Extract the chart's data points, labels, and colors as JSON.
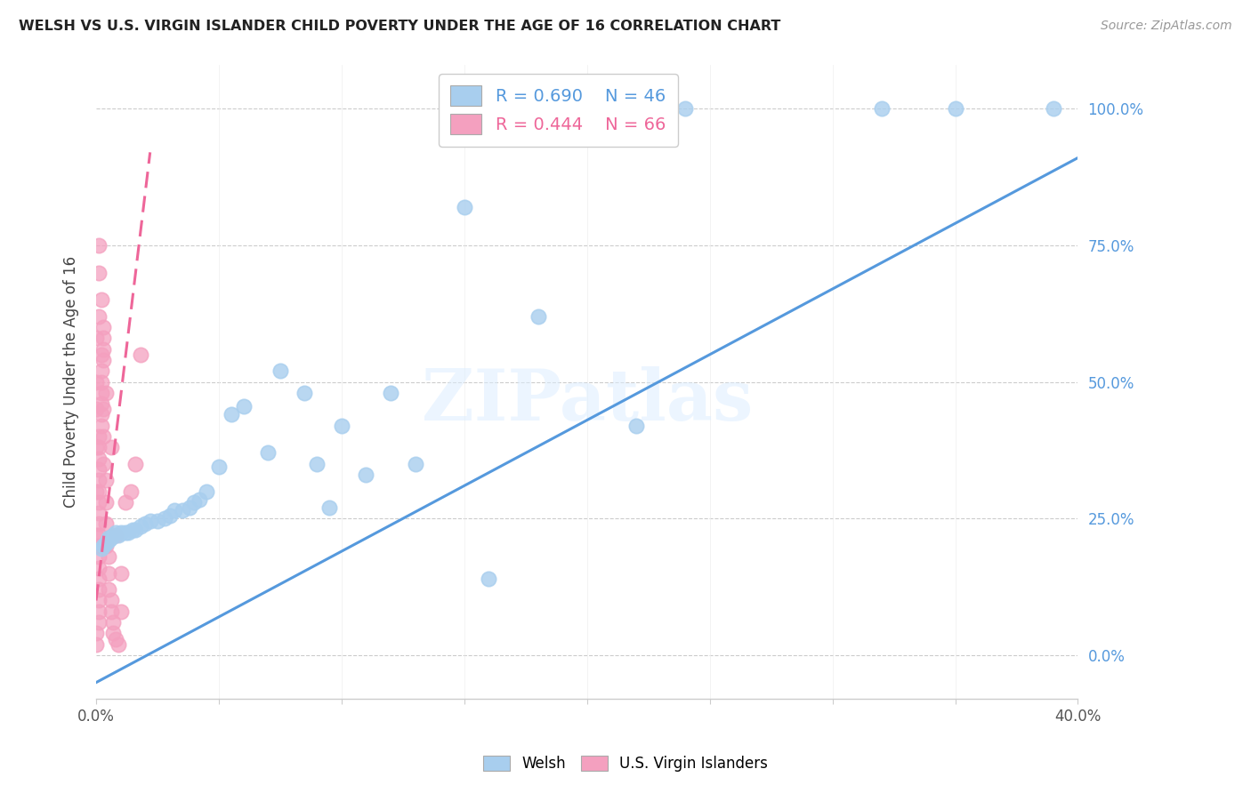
{
  "title": "WELSH VS U.S. VIRGIN ISLANDER CHILD POVERTY UNDER THE AGE OF 16 CORRELATION CHART",
  "source": "Source: ZipAtlas.com",
  "ylabel": "Child Poverty Under the Age of 16",
  "x_min": 0.0,
  "x_max": 0.4,
  "y_min": -0.08,
  "y_max": 1.08,
  "x_ticks": [
    0.0,
    0.05,
    0.1,
    0.15,
    0.2,
    0.25,
    0.3,
    0.35,
    0.4
  ],
  "x_tick_labels": [
    "0.0%",
    "",
    "",
    "",
    "",
    "",
    "",
    "",
    "40.0%"
  ],
  "y_ticks": [
    0.0,
    0.25,
    0.5,
    0.75,
    1.0
  ],
  "y_tick_labels_right": [
    "0.0%",
    "25.0%",
    "50.0%",
    "75.0%",
    "100.0%"
  ],
  "legend_welsh_R": "R = 0.690",
  "legend_welsh_N": "N = 46",
  "legend_vi_R": "R = 0.444",
  "legend_vi_N": "N = 66",
  "welsh_color": "#A8CEEE",
  "vi_color": "#F4A0BF",
  "welsh_line_color": "#5599DD",
  "vi_line_color": "#EE6699",
  "watermark": "ZIPatlas",
  "welsh_line": [
    [
      0.0,
      -0.05
    ],
    [
      0.4,
      0.91
    ]
  ],
  "vi_line": [
    [
      0.0,
      0.1
    ],
    [
      0.022,
      0.92
    ]
  ],
  "welsh_scatter": [
    [
      0.002,
      0.195
    ],
    [
      0.003,
      0.2
    ],
    [
      0.004,
      0.205
    ],
    [
      0.005,
      0.21
    ],
    [
      0.005,
      0.215
    ],
    [
      0.006,
      0.215
    ],
    [
      0.007,
      0.22
    ],
    [
      0.008,
      0.225
    ],
    [
      0.009,
      0.22
    ],
    [
      0.01,
      0.225
    ],
    [
      0.012,
      0.225
    ],
    [
      0.013,
      0.225
    ],
    [
      0.015,
      0.23
    ],
    [
      0.016,
      0.23
    ],
    [
      0.018,
      0.235
    ],
    [
      0.02,
      0.24
    ],
    [
      0.022,
      0.245
    ],
    [
      0.025,
      0.245
    ],
    [
      0.028,
      0.25
    ],
    [
      0.03,
      0.255
    ],
    [
      0.032,
      0.265
    ],
    [
      0.035,
      0.265
    ],
    [
      0.038,
      0.27
    ],
    [
      0.04,
      0.28
    ],
    [
      0.042,
      0.285
    ],
    [
      0.045,
      0.3
    ],
    [
      0.05,
      0.345
    ],
    [
      0.055,
      0.44
    ],
    [
      0.06,
      0.455
    ],
    [
      0.07,
      0.37
    ],
    [
      0.075,
      0.52
    ],
    [
      0.085,
      0.48
    ],
    [
      0.09,
      0.35
    ],
    [
      0.095,
      0.27
    ],
    [
      0.1,
      0.42
    ],
    [
      0.11,
      0.33
    ],
    [
      0.12,
      0.48
    ],
    [
      0.13,
      0.35
    ],
    [
      0.15,
      0.82
    ],
    [
      0.16,
      0.14
    ],
    [
      0.18,
      0.62
    ],
    [
      0.22,
      0.42
    ],
    [
      0.24,
      1.0
    ],
    [
      0.32,
      1.0
    ],
    [
      0.35,
      1.0
    ],
    [
      0.39,
      1.0
    ]
  ],
  "vi_scatter": [
    [
      0.0,
      0.02
    ],
    [
      0.0,
      0.04
    ],
    [
      0.001,
      0.06
    ],
    [
      0.001,
      0.08
    ],
    [
      0.001,
      0.1
    ],
    [
      0.001,
      0.12
    ],
    [
      0.001,
      0.14
    ],
    [
      0.001,
      0.16
    ],
    [
      0.001,
      0.18
    ],
    [
      0.001,
      0.2
    ],
    [
      0.001,
      0.22
    ],
    [
      0.001,
      0.24
    ],
    [
      0.001,
      0.26
    ],
    [
      0.001,
      0.28
    ],
    [
      0.001,
      0.3
    ],
    [
      0.001,
      0.32
    ],
    [
      0.001,
      0.34
    ],
    [
      0.001,
      0.36
    ],
    [
      0.001,
      0.38
    ],
    [
      0.001,
      0.4
    ],
    [
      0.002,
      0.42
    ],
    [
      0.002,
      0.44
    ],
    [
      0.002,
      0.46
    ],
    [
      0.002,
      0.48
    ],
    [
      0.002,
      0.5
    ],
    [
      0.002,
      0.52
    ],
    [
      0.003,
      0.54
    ],
    [
      0.003,
      0.56
    ],
    [
      0.003,
      0.58
    ],
    [
      0.003,
      0.4
    ],
    [
      0.003,
      0.35
    ],
    [
      0.004,
      0.32
    ],
    [
      0.004,
      0.28
    ],
    [
      0.004,
      0.24
    ],
    [
      0.004,
      0.2
    ],
    [
      0.005,
      0.18
    ],
    [
      0.005,
      0.15
    ],
    [
      0.005,
      0.12
    ],
    [
      0.006,
      0.1
    ],
    [
      0.006,
      0.08
    ],
    [
      0.007,
      0.06
    ],
    [
      0.007,
      0.04
    ],
    [
      0.008,
      0.03
    ],
    [
      0.009,
      0.02
    ],
    [
      0.01,
      0.15
    ],
    [
      0.012,
      0.28
    ],
    [
      0.014,
      0.3
    ],
    [
      0.016,
      0.35
    ],
    [
      0.018,
      0.55
    ],
    [
      0.003,
      0.6
    ],
    [
      0.002,
      0.65
    ],
    [
      0.001,
      0.7
    ],
    [
      0.001,
      0.75
    ],
    [
      0.0,
      0.58
    ],
    [
      0.0,
      0.5
    ],
    [
      0.0,
      0.45
    ],
    [
      0.0,
      0.38
    ],
    [
      0.0,
      0.3
    ],
    [
      0.0,
      0.22
    ],
    [
      0.001,
      0.62
    ],
    [
      0.002,
      0.55
    ],
    [
      0.004,
      0.48
    ],
    [
      0.006,
      0.38
    ],
    [
      0.008,
      0.22
    ],
    [
      0.01,
      0.08
    ],
    [
      0.003,
      0.45
    ]
  ]
}
